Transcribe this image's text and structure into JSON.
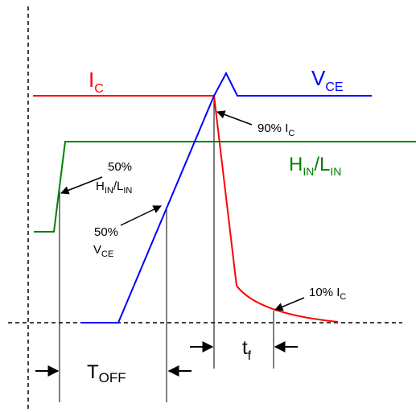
{
  "colors": {
    "ic": "#ff0000",
    "vce": "#0000ff",
    "hin": "#008000",
    "guide": "#000000"
  },
  "labels": {
    "ic_main": "I",
    "ic_sub": "C",
    "vce_main": "V",
    "vce_sub": "CE",
    "hin_h": "H",
    "hin_h_sub": "IN",
    "hin_slash": "/",
    "hin_l": "L",
    "hin_l_sub": "IN",
    "p90_main": "90% I",
    "p90_sub": "C",
    "p50h_pct": "50%",
    "p50h_h": "H",
    "p50h_h_sub": "IN",
    "p50h_slash": "/",
    "p50h_l": "L",
    "p50h_l_sub": "IN",
    "p50v_pct": "50%",
    "p50v_v": "V",
    "p50v_v_sub": "CE",
    "p10_main": "10% I",
    "p10_sub": "C",
    "tf_main": "t",
    "tf_sub": "f",
    "toff_main": "T",
    "toff_sub": "OFF"
  }
}
